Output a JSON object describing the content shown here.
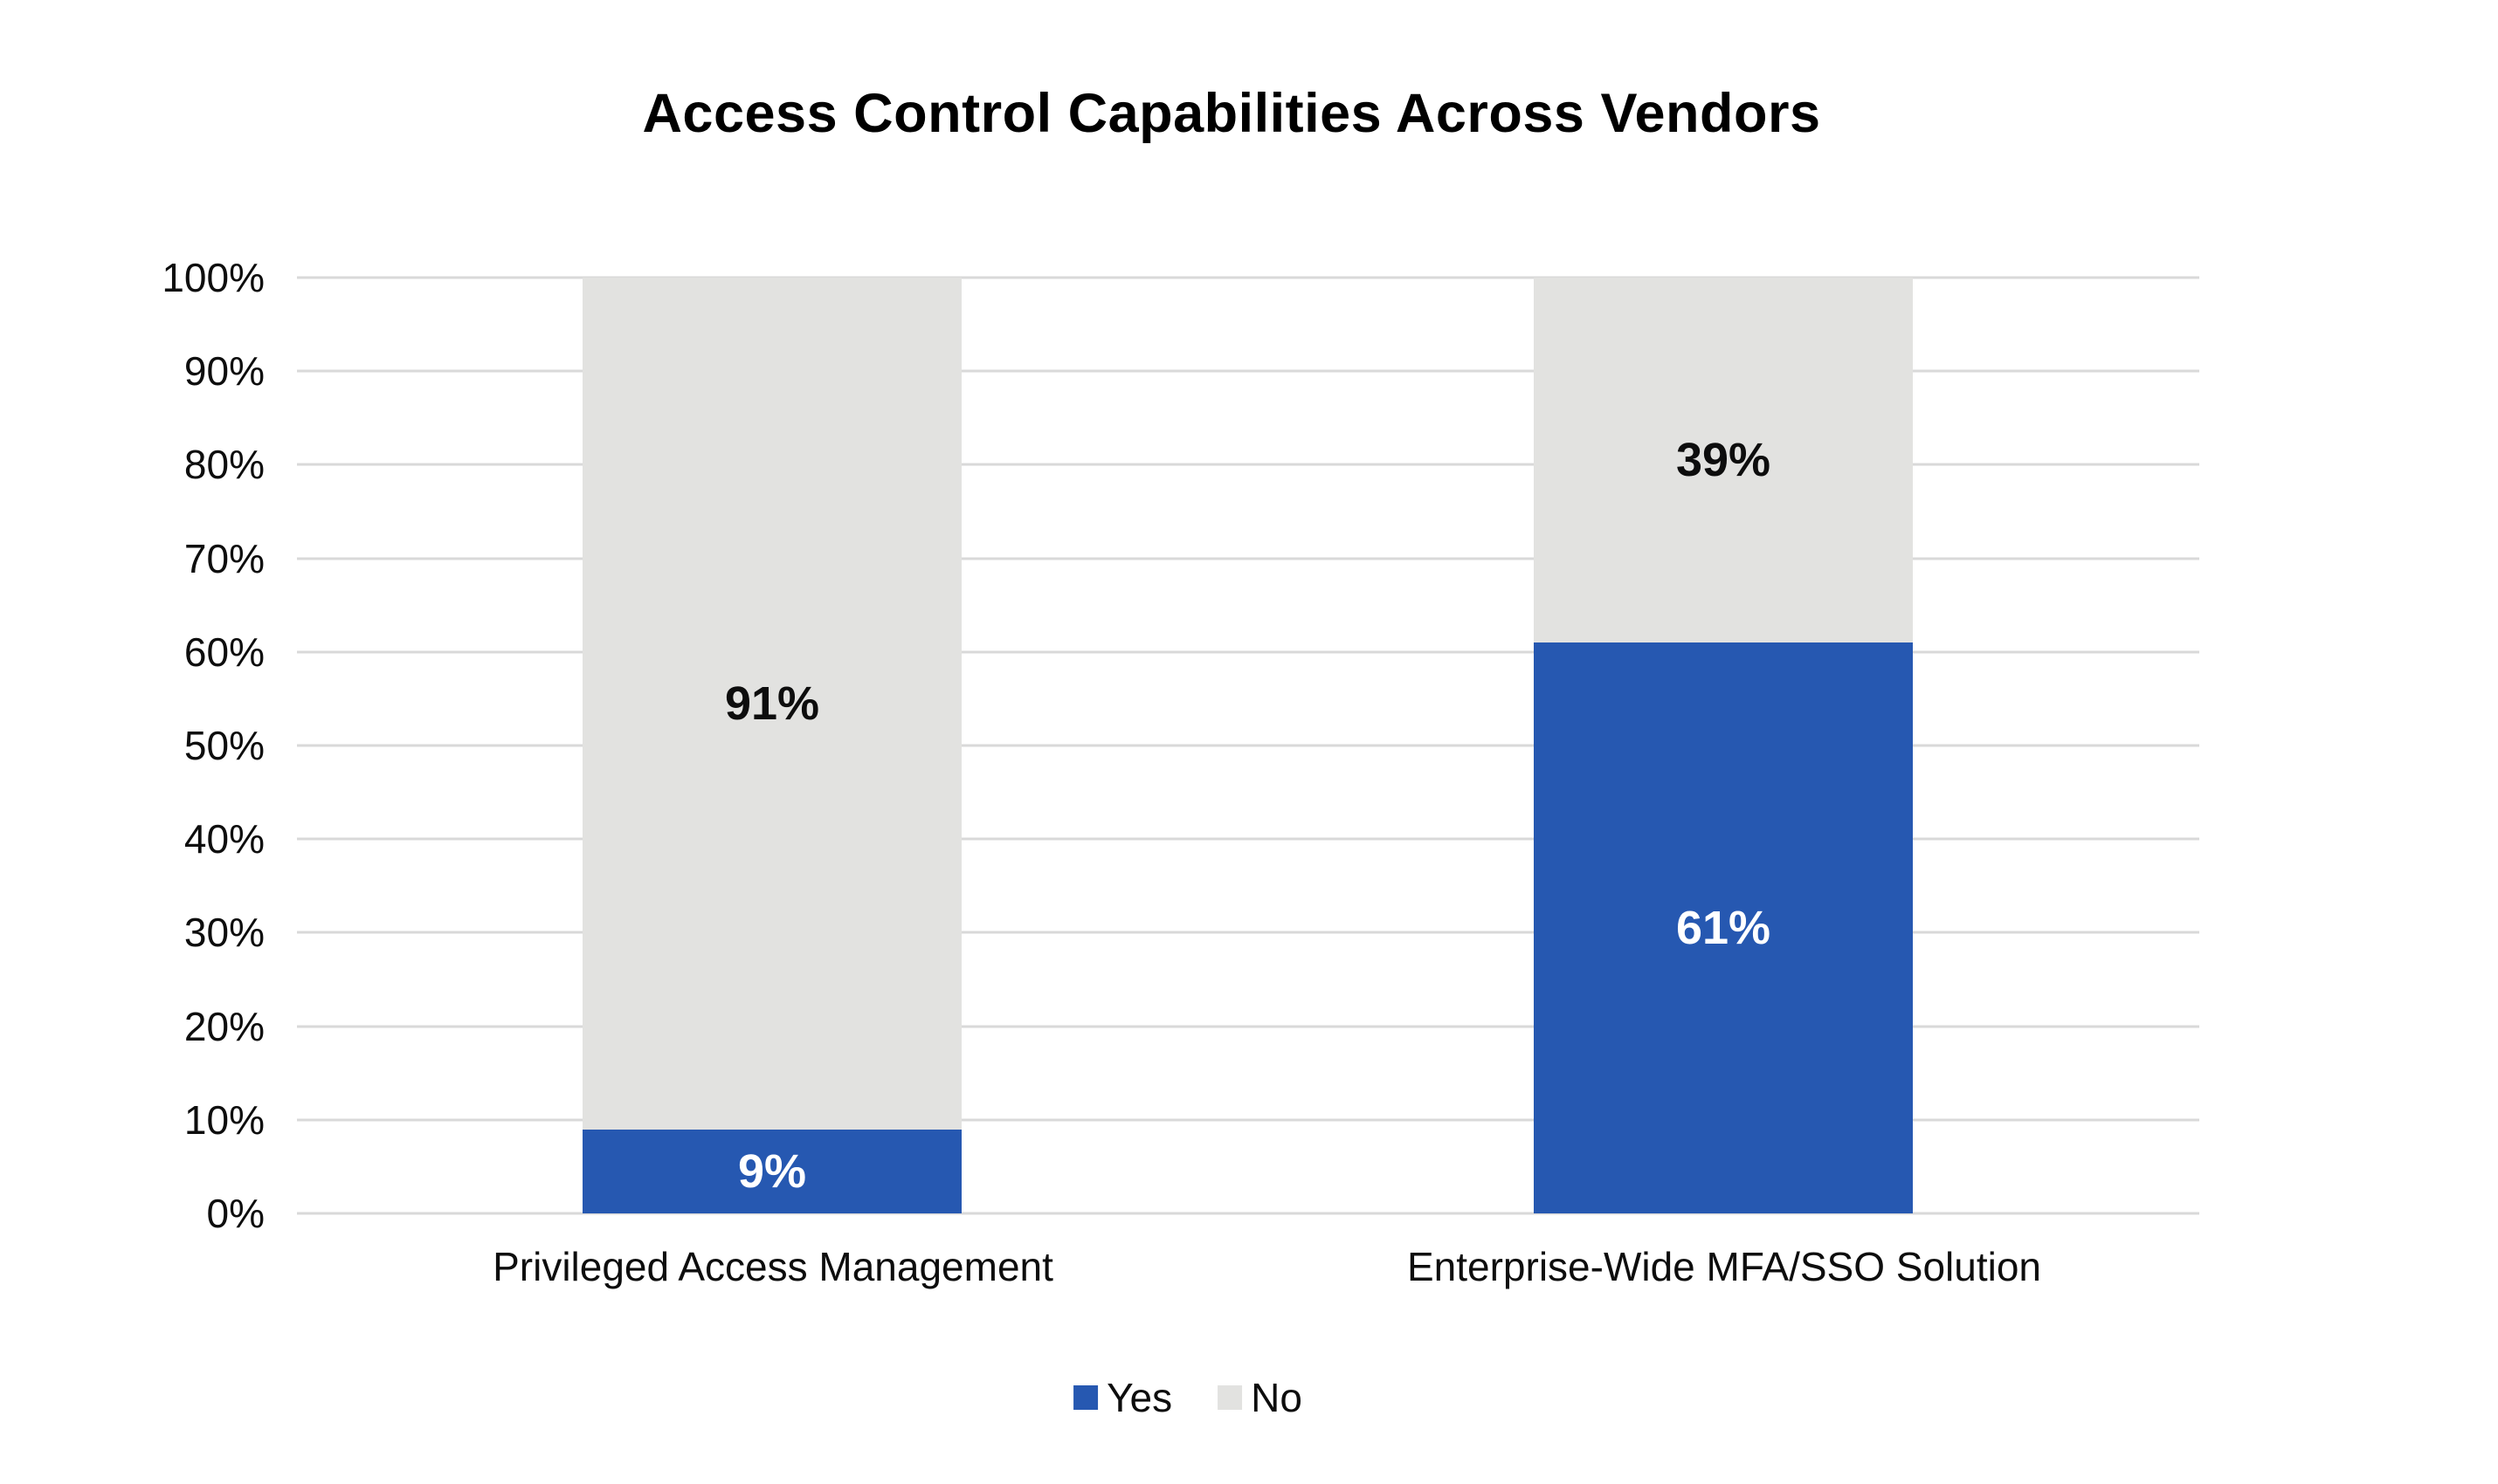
{
  "title": "Access Control Capabilities Across Vendors",
  "colors": {
    "yes": "#2658B1",
    "no": "#E2E2E0",
    "gridline": "#D9D9D9",
    "text": "#0D0D0D",
    "label_on_yes": "#FFFFFF"
  },
  "y_axis": {
    "tick_labels": [
      "100%",
      "90%",
      "80%",
      "70%",
      "60%",
      "50%",
      "40%",
      "30%",
      "20%",
      "10%",
      "0%"
    ]
  },
  "x_axis": {
    "labels": [
      "Privileged Access Management",
      "Enterprise-Wide MFA/SSO Solution"
    ]
  },
  "legend": {
    "position": "bottom",
    "items": [
      {
        "label": "Yes",
        "color": "#2658B1"
      },
      {
        "label": "No",
        "color": "#E2E2E0"
      }
    ]
  },
  "chart_data": {
    "type": "bar",
    "stacked": true,
    "orientation": "vertical",
    "title": "Access Control Capabilities Across Vendors",
    "categories": [
      "Privileged Access Management",
      "Enterprise-Wide MFA/SSO Solution"
    ],
    "series": [
      {
        "name": "Yes",
        "values": [
          9,
          61
        ],
        "color": "#2658B1"
      },
      {
        "name": "No",
        "values": [
          91,
          39
        ],
        "color": "#E2E2E0"
      }
    ],
    "data_labels": {
      "yes": [
        "9%",
        "61%"
      ],
      "no": [
        "91%",
        "39%"
      ]
    },
    "value_suffix": "%",
    "ylim": [
      0,
      100
    ],
    "y_tick_step": 10,
    "grid": true,
    "legend_position": "bottom"
  }
}
